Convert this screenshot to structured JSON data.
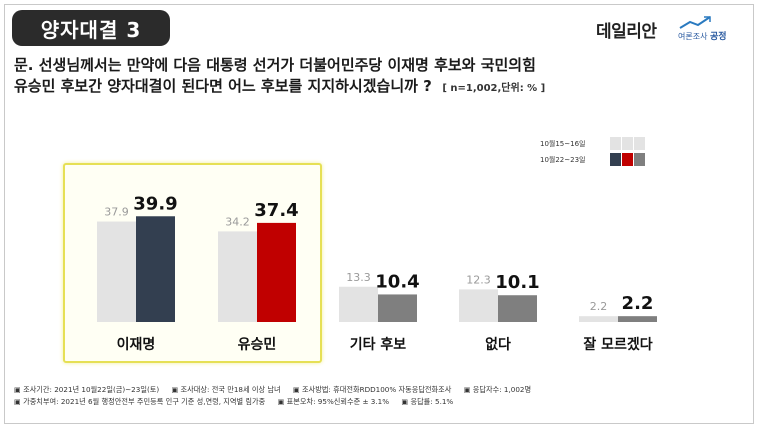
{
  "header": {
    "badge": "양자대결 3",
    "logo_text": "데일리안",
    "partner_small": "여론조사",
    "partner_strong": "공정"
  },
  "question": {
    "line1": "문. 선생님께서는 만약에 다음 대통령 선거가 더불어민주당 이재명 후보와 국민의힘",
    "line2": "유승민 후보간 양자대결이 된다면 어느 후보를 지지하시겠습니까 ?",
    "note": "[ n=1,002,단위: % ]"
  },
  "chart_data": {
    "type": "bar",
    "categories": [
      "이재명",
      "유승민",
      "기타 후보",
      "없다",
      "잘 모르겠다"
    ],
    "series": [
      {
        "name": "10월15~16일",
        "values": [
          37.9,
          34.2,
          13.3,
          12.3,
          2.2
        ]
      },
      {
        "name": "10월22~23일",
        "values": [
          39.9,
          37.4,
          10.4,
          10.1,
          2.2
        ]
      }
    ],
    "value_labels_prev": [
      "37.9",
      "34.2",
      "13.3",
      "12.3",
      "2.2"
    ],
    "value_labels_curr": [
      "39.9",
      "37.4",
      "10.4",
      "10.1",
      "2.2"
    ],
    "highlighted_categories": [
      "이재명",
      "유승민"
    ],
    "colors": {
      "prev": "#e3e3e3",
      "curr_default": "#7f7f7f",
      "curr_lee": "#333f50",
      "curr_yoo": "#c00000"
    },
    "legend_placement": "top-right"
  },
  "legend": {
    "rows": [
      {
        "label": "10월15~16일",
        "swatches": [
          "#e3e3e3",
          "#e3e3e3",
          "#e3e3e3"
        ]
      },
      {
        "label": "10월22~23일",
        "swatches": [
          "#333f50",
          "#c00000",
          "#7f7f7f"
        ]
      }
    ]
  },
  "footer": {
    "items_row1": [
      "▣ 조사기간: 2021년 10월22일(금)~23일(토)",
      "▣ 조사대상: 전국 만18세 이상 남녀",
      "▣ 조사방법: 휴대전화RDD100% 자동응답전화조사",
      "▣ 응답자수: 1,002명"
    ],
    "items_row2": [
      "▣ 가중치부여: 2021년 6월 행정안전부 주민등록 인구 기준 성,연령, 지역별 림가중",
      "▣ 표본오차: 95%신뢰수준 ± 3.1%",
      "▣ 응답률: 5.1%"
    ]
  }
}
